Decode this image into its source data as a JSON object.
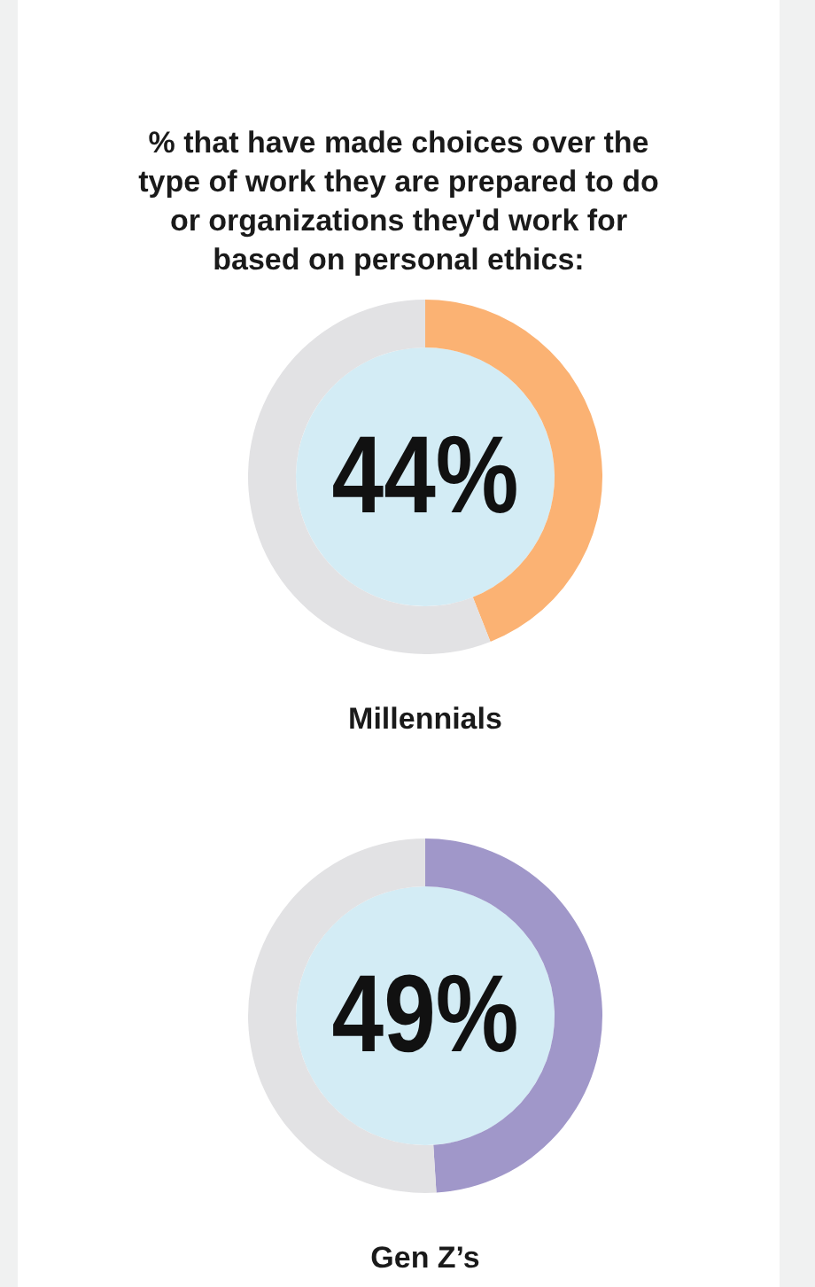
{
  "chart_data": [
    {
      "type": "donut",
      "title": "% that have made choices over the type of work they are prepared to do or organizations they'd work for based on personal ethics:",
      "xlabel": "Millennials",
      "categories": [
        null,
        null
      ],
      "values": [
        44,
        56
      ],
      "colors": [
        "#fbb273",
        "#e2e2e4"
      ],
      "value_labels": [
        "44%",
        null
      ]
    },
    {
      "type": "donut",
      "xlabel": "Gen Z’s",
      "categories": [
        null,
        null
      ],
      "values": [
        49,
        51
      ],
      "colors": [
        "#a097c9",
        "#e2e2e4"
      ],
      "value_labels": [
        "49%",
        null
      ]
    }
  ]
}
